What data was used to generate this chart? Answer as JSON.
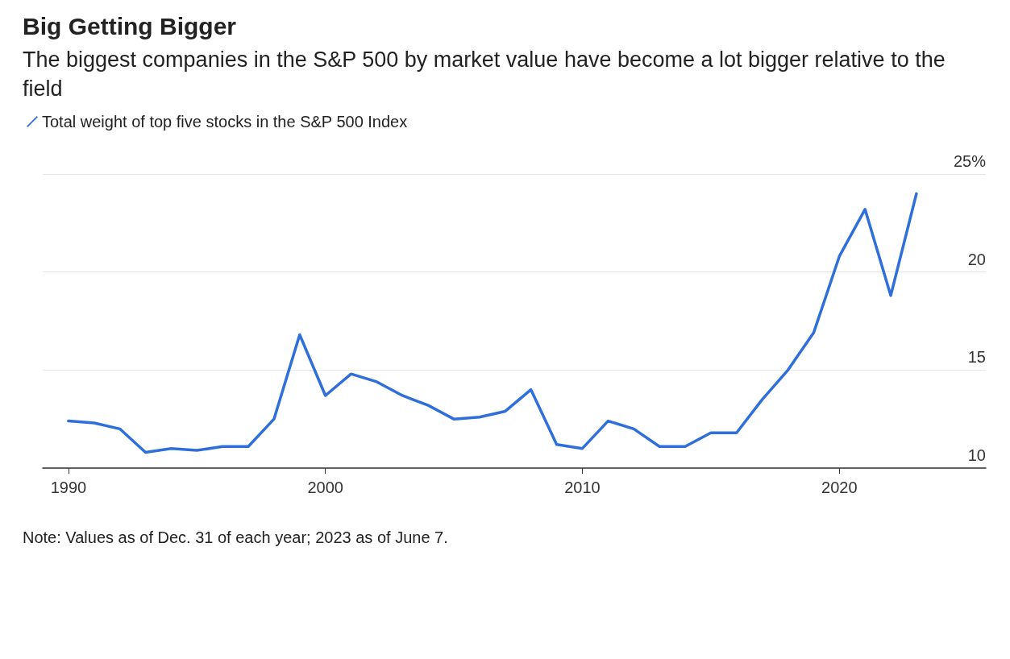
{
  "chart_data": {
    "type": "line",
    "title": "Big Getting Bigger",
    "subtitle": "The biggest companies in the S&P 500 by market value have become a lot bigger relative to the field",
    "x": [
      1990,
      1991,
      1992,
      1993,
      1994,
      1995,
      1996,
      1997,
      1998,
      1999,
      2000,
      2001,
      2002,
      2003,
      2004,
      2005,
      2006,
      2007,
      2008,
      2009,
      2010,
      2011,
      2012,
      2013,
      2014,
      2015,
      2016,
      2017,
      2018,
      2019,
      2020,
      2021,
      2022,
      2023
    ],
    "series": [
      {
        "name": "Total weight of top five stocks in the S&P 500 Index",
        "color": "#2f6fdc",
        "values": [
          12.4,
          12.3,
          12.0,
          10.8,
          11.0,
          10.9,
          11.1,
          11.1,
          12.5,
          16.8,
          13.7,
          14.8,
          14.4,
          13.7,
          13.2,
          12.5,
          12.6,
          12.9,
          14.0,
          11.2,
          11.0,
          12.4,
          12.0,
          11.1,
          11.1,
          11.8,
          11.8,
          13.5,
          15.0,
          16.9,
          20.8,
          23.2,
          18.8,
          24.0
        ]
      }
    ],
    "xlim": [
      1989,
      2025.7
    ],
    "xticks": [
      1990,
      2000,
      2010,
      2020
    ],
    "ylim": [
      10,
      25
    ],
    "yticks": [
      10,
      15,
      20,
      {
        "value": 25,
        "label": "25%"
      }
    ],
    "grid": "y",
    "legend": "top left",
    "marker": "none",
    "line_style": "solid",
    "annotations": [
      "Note: Values as of Dec. 31 of each year; 2023 as of June 7."
    ]
  }
}
